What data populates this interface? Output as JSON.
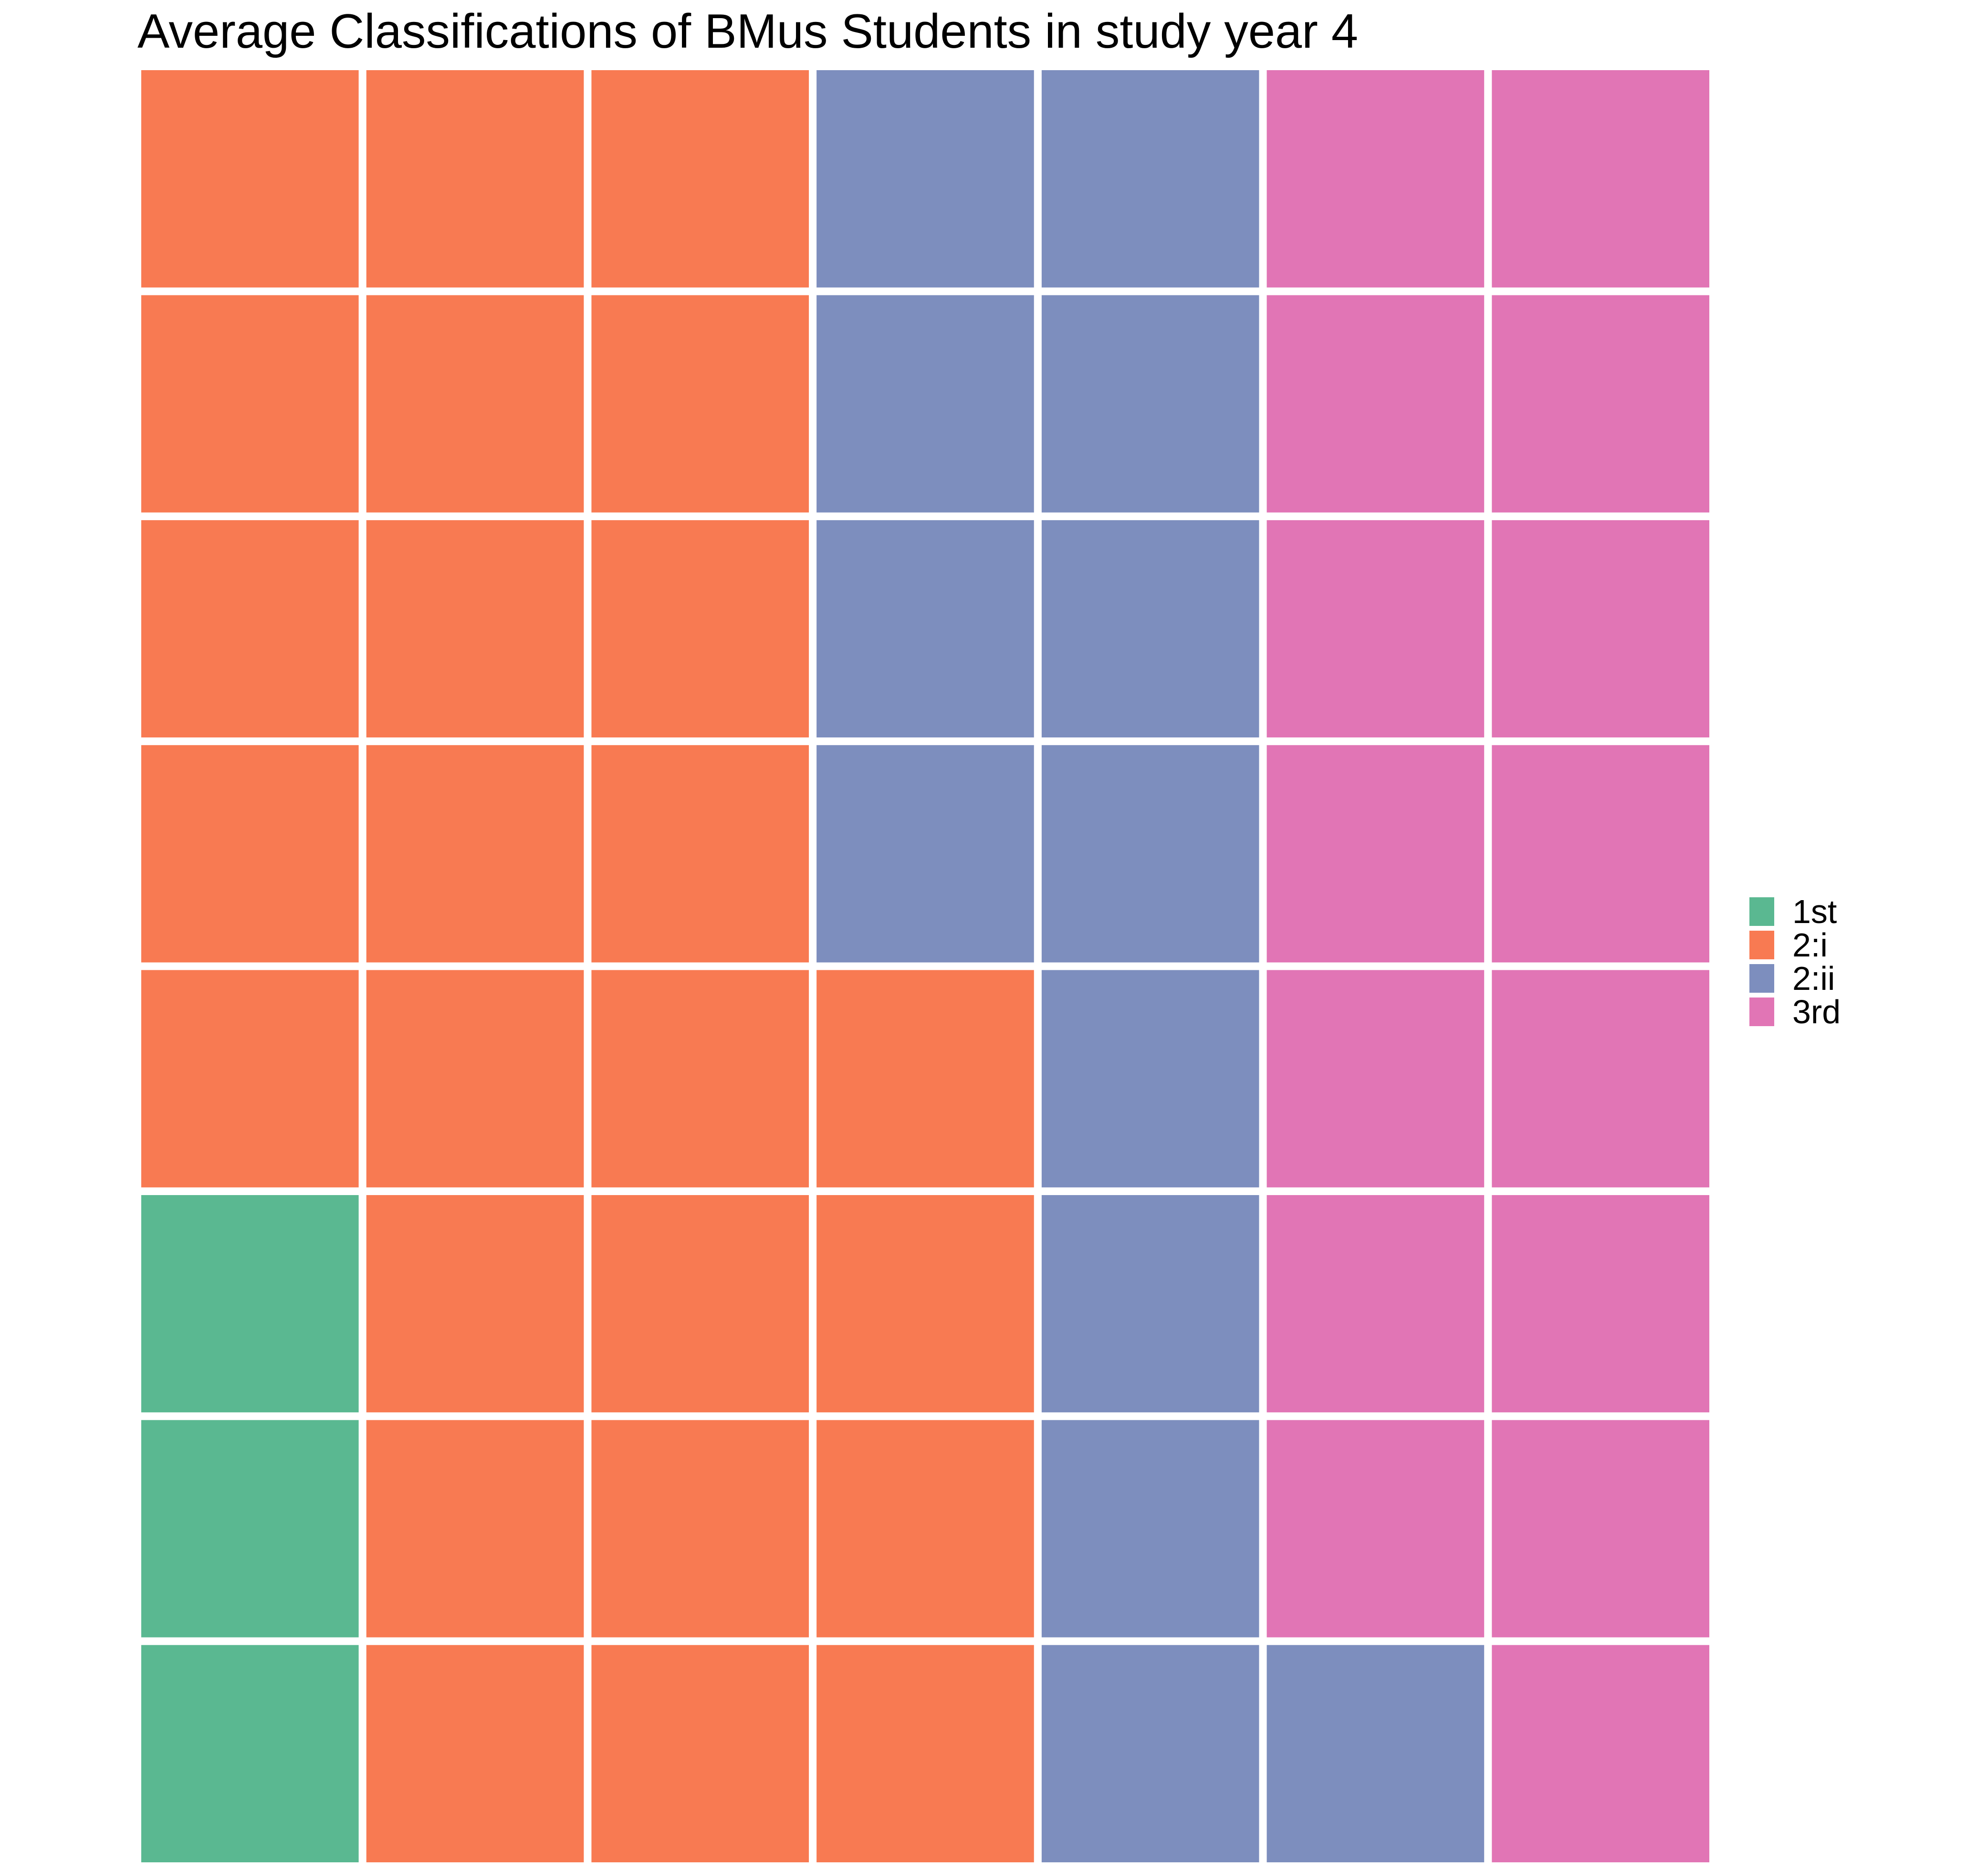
{
  "chart_data": {
    "type": "waffle",
    "title": "Average Classifications of BMus Students in study year 4",
    "grid": {
      "rows": 8,
      "cols": 7,
      "fill_order": "column-major, bottom-to-top"
    },
    "categories": [
      "1st",
      "2:i",
      "2:ii",
      "3rd"
    ],
    "values": [
      3,
      25,
      13,
      15
    ],
    "colors": {
      "1st": "#5AB891",
      "2:i": "#F87A52",
      "2:ii": "#7D8EBE",
      "3rd": "#E175B5"
    },
    "legend": {
      "position": "right",
      "items": [
        {
          "label": "1st",
          "color": "#5AB891"
        },
        {
          "label": "2:i",
          "color": "#F87A52"
        },
        {
          "label": "2:ii",
          "color": "#7D8EBE"
        },
        {
          "label": "3rd",
          "color": "#E175B5"
        }
      ]
    }
  }
}
